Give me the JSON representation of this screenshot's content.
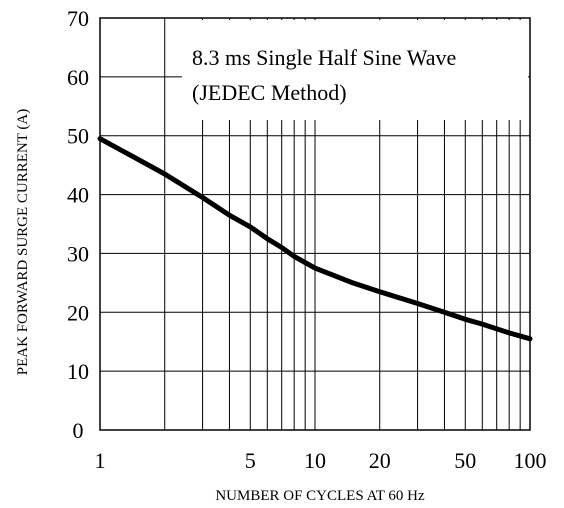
{
  "chart_data": {
    "type": "line",
    "xlabel": "NUMBER OF CYCLES AT 60 Hz",
    "ylabel": "PEAK FORWARD SURGE CURRENT (A)",
    "x_scale": "log",
    "xlim": [
      1,
      100
    ],
    "ylim": [
      0,
      70
    ],
    "x_tick_labels": [
      "1",
      "5",
      "10",
      "20",
      "50",
      "100"
    ],
    "y_tick_labels": [
      "0",
      "10",
      "20",
      "30",
      "40",
      "50",
      "60",
      "70"
    ],
    "annotation_lines": [
      "8.3 ms Single Half Sine Wave",
      "(JEDEC Method)"
    ],
    "grid": true,
    "series": [
      {
        "x": [
          1,
          1.5,
          2,
          3,
          4,
          5,
          6,
          7,
          8,
          10,
          15,
          20,
          30,
          40,
          50,
          60,
          80,
          100
        ],
        "values": [
          49.5,
          46,
          43.5,
          39.5,
          36.5,
          34.5,
          32.5,
          31,
          29.5,
          27.5,
          25,
          23.5,
          21.5,
          20,
          18.8,
          18,
          16.5,
          15.5
        ]
      }
    ]
  }
}
